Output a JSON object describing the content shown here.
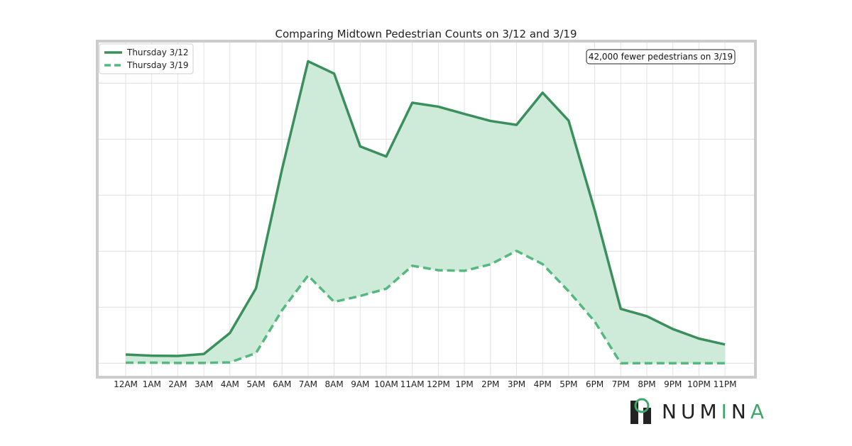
{
  "chart_data": {
    "type": "line",
    "title": "Comparing Midtown Pedestrian Counts on 3/12 and 3/19",
    "xlabel": "",
    "ylabel": "",
    "categories": [
      "12AM",
      "1AM",
      "2AM",
      "3AM",
      "4AM",
      "5AM",
      "6AM",
      "7AM",
      "8AM",
      "9AM",
      "10AM",
      "11AM",
      "12PM",
      "1PM",
      "2PM",
      "3PM",
      "4PM",
      "5PM",
      "6PM",
      "7PM",
      "8PM",
      "9PM",
      "10PM",
      "11PM"
    ],
    "series": [
      {
        "name": "Thursday 3/12",
        "style": "solid",
        "color": "#3a8f5c",
        "values": [
          3.1,
          2.7,
          2.6,
          3.3,
          10.8,
          26.7,
          69.2,
          107.8,
          103.4,
          77.4,
          73.8,
          93.0,
          91.6,
          89.0,
          86.5,
          85.1,
          96.6,
          86.6,
          54.6,
          19.4,
          16.8,
          12.2,
          8.8,
          6.7
        ]
      },
      {
        "name": "Thursday 3/19",
        "style": "dashed",
        "color": "#55b87f",
        "values": [
          0.2,
          0.2,
          0.1,
          0.1,
          0.3,
          3.6,
          18.9,
          31.3,
          21.9,
          24.0,
          26.6,
          34.8,
          33.2,
          33.0,
          35.3,
          40.1,
          35.4,
          25.7,
          14.9,
          0.0,
          0.0,
          0.0,
          0.0,
          0.0
        ]
      }
    ],
    "ylim": [
      -5,
      115
    ],
    "y_tick_labels": "hidden",
    "grid": true,
    "fill_between_color": "#cdebd8",
    "legend": {
      "placement": "top-left"
    },
    "annotation": "42,000 fewer pedestrians on 3/19"
  },
  "logo": {
    "text": "NUMINA",
    "dark_color": "#222222",
    "accent_color": "#3fa66b"
  }
}
